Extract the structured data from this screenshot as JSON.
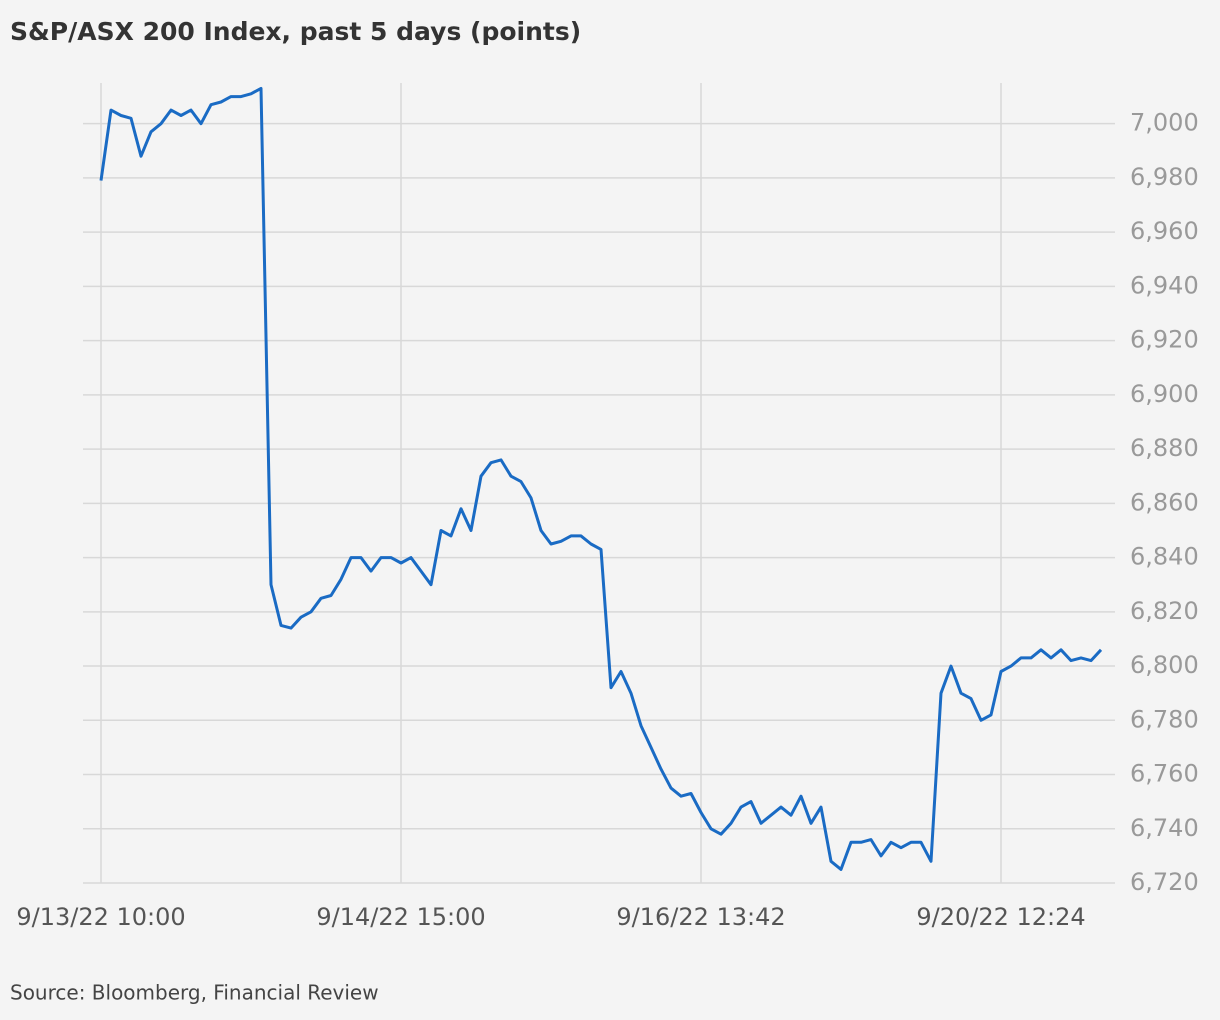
{
  "chart_data": {
    "type": "line",
    "title": "S&P/ASX 200 Index, past 5 days (points)",
    "source": "Source: Bloomberg, Financial Review",
    "categories": [
      "9/13/22 10:00",
      null,
      null,
      null,
      null,
      null,
      null,
      null,
      null,
      null,
      null,
      null,
      null,
      null,
      null,
      null,
      null,
      null,
      null,
      null,
      null,
      null,
      null,
      null,
      null,
      null,
      null,
      null,
      null,
      null,
      "9/14/22 15:00",
      null,
      null,
      null,
      null,
      null,
      null,
      null,
      null,
      null,
      null,
      null,
      null,
      null,
      null,
      null,
      null,
      null,
      null,
      null,
      null,
      null,
      null,
      null,
      null,
      null,
      null,
      null,
      null,
      null,
      "9/16/22 13:42",
      null,
      null,
      null,
      null,
      null,
      null,
      null,
      null,
      null,
      null,
      null,
      null,
      null,
      null,
      null,
      null,
      null,
      null,
      null,
      null,
      null,
      null,
      null,
      null,
      null,
      null,
      null,
      null,
      null,
      "9/20/22 12:24",
      null,
      null,
      null,
      null,
      null,
      null,
      null,
      null,
      null,
      null
    ],
    "values": [
      6979,
      7005,
      7003,
      7002,
      6988,
      6997,
      7000,
      7005,
      7003,
      7005,
      7000,
      7007,
      7008,
      7010,
      7010,
      7011,
      7013,
      6830,
      6815,
      6814,
      6818,
      6820,
      6825,
      6826,
      6832,
      6840,
      6840,
      6835,
      6840,
      6840,
      6838,
      6840,
      6835,
      6830,
      6850,
      6848,
      6858,
      6850,
      6870,
      6875,
      6876,
      6870,
      6868,
      6862,
      6850,
      6845,
      6846,
      6848,
      6848,
      6845,
      6843,
      6792,
      6798,
      6790,
      6778,
      6770,
      6762,
      6755,
      6752,
      6753,
      6746,
      6740,
      6738,
      6742,
      6748,
      6750,
      6742,
      6745,
      6748,
      6745,
      6752,
      6742,
      6748,
      6728,
      6725,
      6735,
      6735,
      6736,
      6730,
      6735,
      6733,
      6735,
      6735,
      6728,
      6790,
      6800,
      6790,
      6788,
      6780,
      6782,
      6798,
      6800,
      6803,
      6803,
      6806,
      6803,
      6806,
      6802,
      6803,
      6802,
      6806
    ],
    "color": "#1a6bc4",
    "ylim": [
      6720,
      7015
    ],
    "yticks": [
      {
        "value": 6720,
        "label": "6,720"
      },
      {
        "value": 6740,
        "label": "6,740"
      },
      {
        "value": 6760,
        "label": "6,760"
      },
      {
        "value": 6780,
        "label": "6,780"
      },
      {
        "value": 6800,
        "label": "6,800"
      },
      {
        "value": 6820,
        "label": "6,820"
      },
      {
        "value": 6840,
        "label": "6,840"
      },
      {
        "value": 6860,
        "label": "6,860"
      },
      {
        "value": 6880,
        "label": "6,880"
      },
      {
        "value": 6900,
        "label": "6,900"
      },
      {
        "value": 6920,
        "label": "6,920"
      },
      {
        "value": 6940,
        "label": "6,940"
      },
      {
        "value": 6960,
        "label": "6,960"
      },
      {
        "value": 6980,
        "label": "6,980"
      },
      {
        "value": 7000,
        "label": "7,000"
      }
    ],
    "grid": true
  }
}
